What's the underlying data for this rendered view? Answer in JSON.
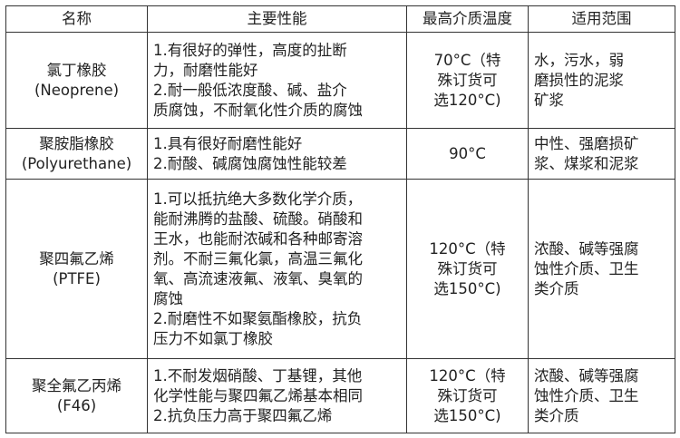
{
  "headers": [
    "名称",
    "主要性能",
    "最高介质温度",
    "适用范围"
  ],
  "rows": [
    {
      "name": "氯丁橡胶\n(Neoprene)",
      "performance": "1.有很好的弹性，高度的扯断\n力，耐磨性能好\n2.耐一般低浓度酸、碱、盐介\n质腐蚀，不耐氧化性介质的腐蚀",
      "temp": "70°C（特\n殊订货可\n选120°C)",
      "scope": "水，污水，弱\n磨损性的泥浆\n矿浆"
    },
    {
      "name": "聚胺脂橡胶\n(Polyurethane)",
      "performance": "1.具有很好耐磨性能好\n2.耐酸、碱腐蚀腐蚀性能较差",
      "temp": "90°C",
      "scope": "中性、强磨损矿\n浆、煤浆和泥浆"
    },
    {
      "name": "聚四氟乙烯\n(PTFE)",
      "performance": "1.可以抵抗绝大多数化学介质，\n能耐沸腾的盐酸、硫酸。硝酸和\n王水，也能耐浓碱和各种邮寄溶\n剂。不耐三氟化氯，高温三氟化\n氧、高流速液氟、液氧、臭氧的\n腐蚀\n2.耐磨性不如聚氨酯橡胶，抗负\n压力不如氯丁橡胶",
      "temp": "120°C（特\n殊订货可\n选150°C)",
      "scope": "浓酸、碱等强腐\n蚀性介质、卫生\n类介质"
    },
    {
      "name": "聚全氟乙丙烯\n(F46)",
      "performance": "1.不耐发烟硝酸、丁基锂，其他\n化学性能与聚四氟乙烯基本相同\n2.抗负压力高于聚四氟乙烯",
      "temp": "120°C（特\n殊订货可\n选150°C)",
      "scope": "浓酸、碱等强腐\n蚀性介质、卫生\n类介质"
    }
  ]
}
